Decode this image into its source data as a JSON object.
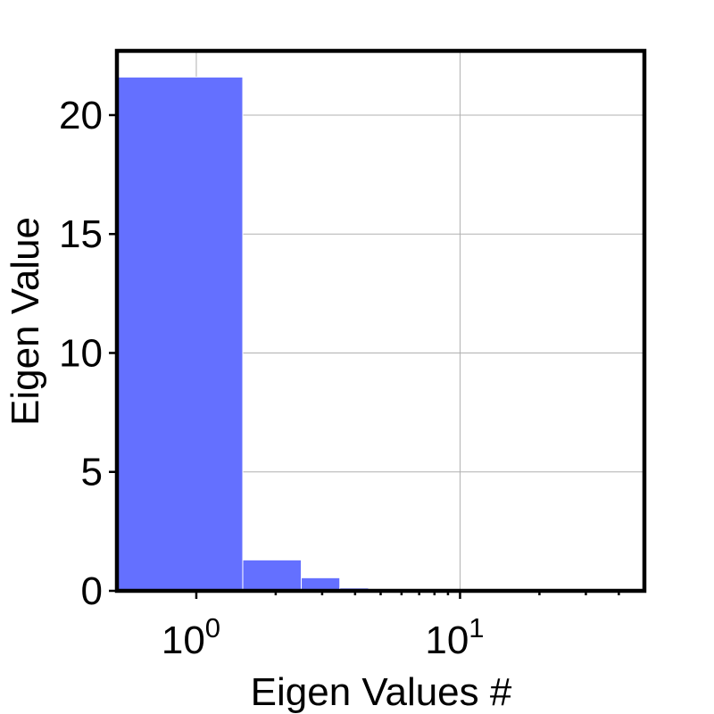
{
  "chart_data": {
    "type": "bar",
    "title": "",
    "xlabel": "Eigen Values #",
    "ylabel": "Eigen Value",
    "x_scale": "log",
    "xlim": [
      0.5,
      50
    ],
    "ylim": [
      0,
      22.7
    ],
    "grid": true,
    "bar_color": "#6470ff",
    "x": [
      1,
      2,
      3,
      4,
      5,
      6,
      7,
      8,
      9,
      10,
      11,
      12,
      13,
      14,
      15,
      16,
      17,
      18,
      19,
      20,
      21,
      22,
      23,
      24,
      25,
      26,
      27,
      28,
      29,
      30,
      31,
      32,
      33,
      34,
      35,
      36,
      37,
      38,
      39,
      40,
      41,
      42,
      43,
      44,
      45,
      46,
      47,
      48,
      49
    ],
    "values": [
      21.6,
      1.3,
      0.55,
      0.12,
      0.05,
      0.03,
      0.02,
      0.015,
      0.01,
      0.008,
      0.006,
      0.005,
      0.004,
      0.003,
      0.003,
      0.002,
      0.002,
      0.002,
      0.001,
      0.001,
      0.001,
      0.001,
      0.001,
      0.001,
      0.001,
      0.001,
      0.001,
      0.001,
      0.001,
      0.001,
      0.001,
      0.001,
      0.001,
      0.001,
      0.001,
      0.001,
      0.001,
      0.001,
      0.001,
      0.001,
      0.001,
      0.001,
      0.001,
      0.001,
      0.001,
      0.001,
      0.001,
      0.001,
      0.001
    ],
    "yticks": [
      {
        "value": 0,
        "label": "0"
      },
      {
        "value": 5,
        "label": "5"
      },
      {
        "value": 10,
        "label": "10"
      },
      {
        "value": 15,
        "label": "15"
      },
      {
        "value": 20,
        "label": "20"
      }
    ],
    "xticks": [
      {
        "value": 1,
        "base": "10",
        "exp": "0"
      },
      {
        "value": 10,
        "base": "10",
        "exp": "1"
      }
    ]
  }
}
